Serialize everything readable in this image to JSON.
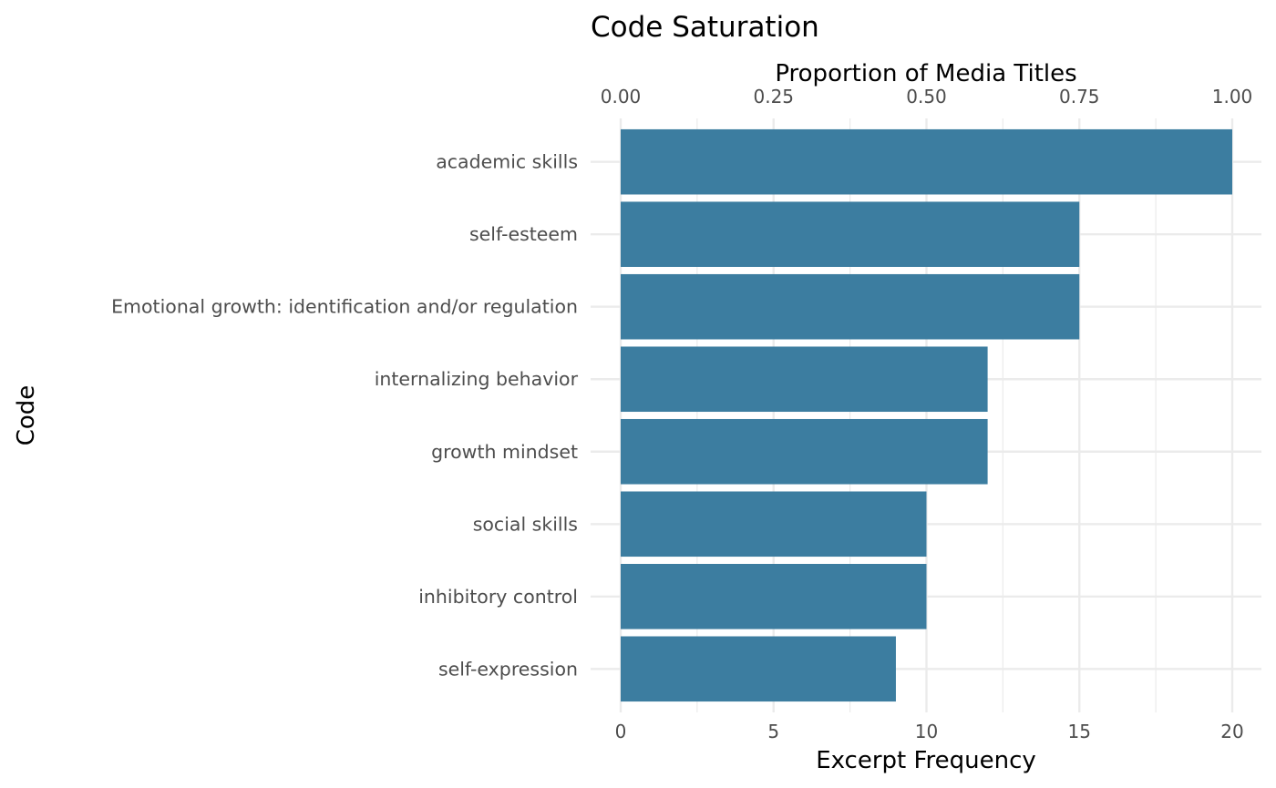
{
  "chart_data": {
    "type": "bar",
    "orientation": "horizontal",
    "title": "Code Saturation",
    "xlabel": "Excerpt Frequency",
    "x2label": "Proportion of Media Titles",
    "ylabel": "Code",
    "categories": [
      "academic skills",
      "self-esteem",
      "Emotional growth: identification and/or regulation",
      "internalizing behavior",
      "growth mindset",
      "social skills",
      "inhibitory control",
      "self-expression"
    ],
    "values": [
      20,
      15,
      15,
      12,
      12,
      10,
      10,
      9
    ],
    "xlim": [
      0,
      20
    ],
    "xticks": [
      "0",
      "5",
      "10",
      "15",
      "20"
    ],
    "x2lim": [
      0,
      1
    ],
    "x2ticks": [
      "0.00",
      "0.25",
      "0.50",
      "0.75",
      "1.00"
    ],
    "grid": true,
    "legend": "none",
    "bar_color": "#3c7da0",
    "grid_color": "#ebebeb"
  }
}
